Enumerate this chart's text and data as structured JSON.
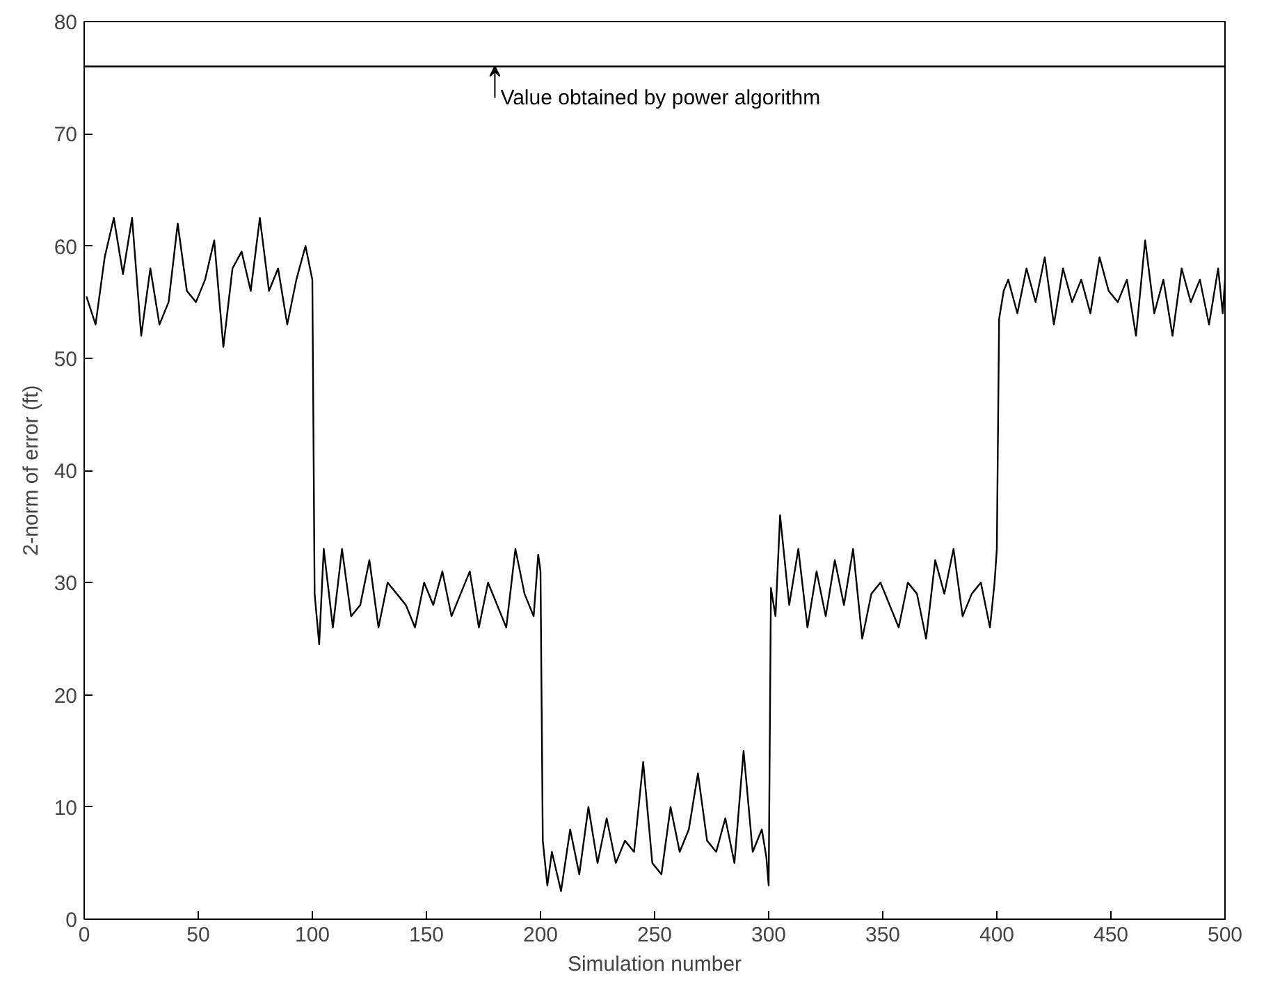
{
  "chart_data": {
    "type": "line",
    "xlabel": "Simulation number",
    "ylabel": "2-norm of error (ft)",
    "xlim": [
      0,
      500
    ],
    "ylim": [
      0,
      80
    ],
    "xticks": [
      0,
      50,
      100,
      150,
      200,
      250,
      300,
      350,
      400,
      450,
      500
    ],
    "yticks": [
      0,
      10,
      20,
      30,
      40,
      50,
      60,
      70,
      80
    ],
    "grid": false,
    "series": [
      {
        "color": "#000000",
        "x": [
          1,
          5,
          9,
          13,
          17,
          21,
          25,
          29,
          33,
          37,
          41,
          45,
          49,
          53,
          57,
          61,
          65,
          69,
          73,
          77,
          81,
          85,
          89,
          93,
          97,
          100,
          101,
          103,
          105,
          109,
          113,
          117,
          121,
          125,
          129,
          133,
          137,
          141,
          145,
          149,
          153,
          157,
          161,
          165,
          169,
          173,
          177,
          181,
          185,
          189,
          193,
          197,
          199,
          200,
          201,
          203,
          205,
          209,
          213,
          217,
          221,
          225,
          229,
          233,
          237,
          241,
          245,
          249,
          253,
          257,
          261,
          265,
          269,
          273,
          277,
          281,
          285,
          289,
          293,
          297,
          299,
          300,
          301,
          303,
          305,
          309,
          313,
          317,
          321,
          325,
          329,
          333,
          337,
          341,
          345,
          349,
          353,
          357,
          361,
          365,
          369,
          373,
          377,
          381,
          385,
          389,
          393,
          397,
          399,
          400,
          401,
          403,
          405,
          409,
          413,
          417,
          421,
          425,
          429,
          433,
          437,
          441,
          445,
          449,
          453,
          457,
          461,
          465,
          469,
          473,
          477,
          481,
          485,
          489,
          493,
          497,
          499,
          500
        ],
        "values": [
          55.5,
          53,
          59,
          62.5,
          57.5,
          62.5,
          52,
          58,
          53,
          55,
          62,
          56,
          55,
          57,
          60.5,
          51,
          58,
          59.5,
          56,
          62.5,
          56,
          58,
          53,
          57,
          60,
          57,
          29,
          24.5,
          33,
          26,
          33,
          27,
          28,
          32,
          26,
          30,
          29,
          28,
          26,
          30,
          28,
          31,
          27,
          29,
          31,
          26,
          30,
          28,
          26,
          33,
          29,
          27,
          32.5,
          31,
          7,
          3,
          6,
          2.5,
          8,
          4,
          10,
          5,
          9,
          5,
          7,
          6,
          14,
          5,
          4,
          10,
          6,
          8,
          13,
          7,
          6,
          9,
          5,
          15,
          6,
          8,
          5.5,
          3,
          29.5,
          27,
          36,
          28,
          33,
          26,
          31,
          27,
          32,
          28,
          33,
          25,
          29,
          30,
          28,
          26,
          30,
          29,
          25,
          32,
          29,
          33,
          27,
          29,
          30,
          26,
          30,
          33,
          53.5,
          56,
          57,
          54,
          58,
          55,
          59,
          53,
          58,
          55,
          57,
          54,
          59,
          56,
          55,
          57,
          52,
          60.5,
          54,
          57,
          52,
          58,
          55,
          57,
          53,
          58,
          54,
          57
        ]
      }
    ],
    "ref_lines": [
      {
        "axis": "y",
        "value": 76,
        "color": "#000000"
      }
    ],
    "annotations": [
      {
        "text": "Value obtained by power algorithm",
        "x": 180,
        "y": 76
      }
    ]
  }
}
